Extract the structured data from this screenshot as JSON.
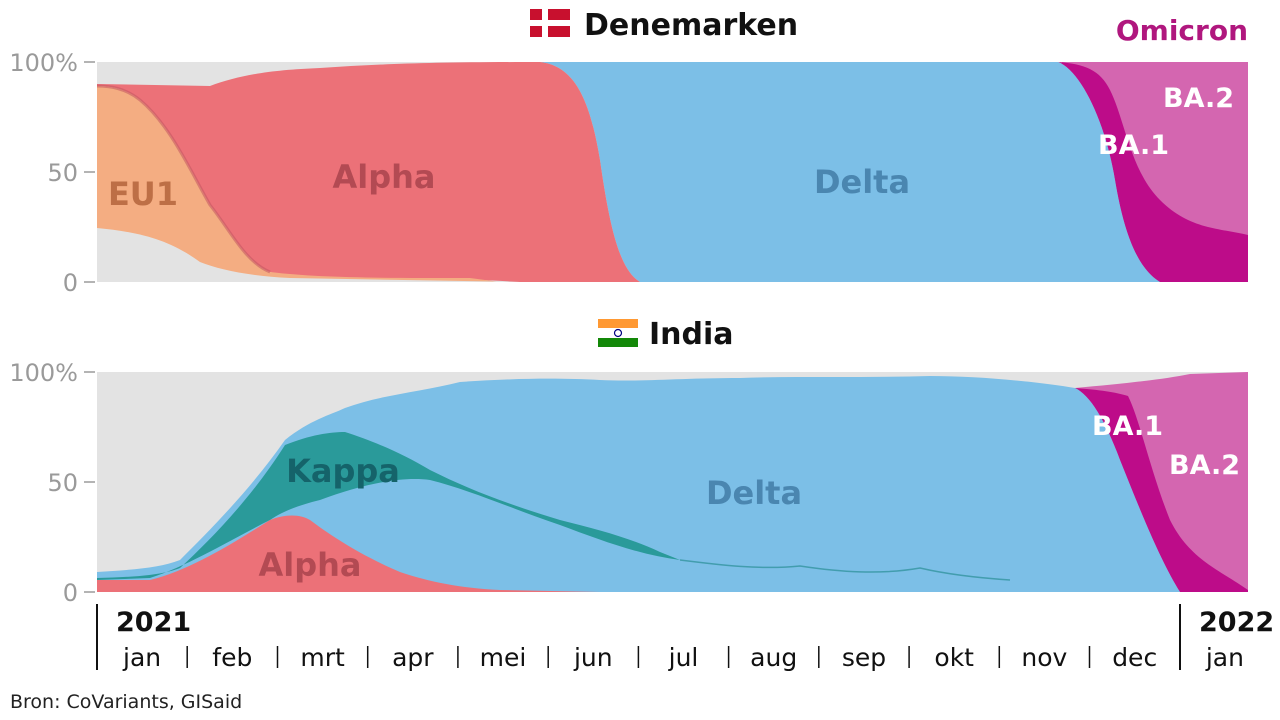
{
  "omicron_label": "Omicron",
  "source": "Bron: CoVariants, GISaid",
  "year_start": "2021",
  "year_end": "2022",
  "months": [
    "jan",
    "feb",
    "mrt",
    "apr",
    "mei",
    "jun",
    "jul",
    "aug",
    "sep",
    "okt",
    "nov",
    "dec",
    "jan"
  ],
  "colors": {
    "background": "#e3e3e3",
    "eu1": "#f4ad82",
    "alpha": "#ec7178",
    "delta": "#7cbfe7",
    "kappa": "#2a9a9a",
    "ba1": "#bd0c89",
    "ba2": "#d466b0",
    "omicron_title": "#b0177e"
  },
  "chart_data": [
    {
      "type": "area",
      "title": "Denemarken",
      "flag": "flag-denmark",
      "y_ticks": [
        "0",
        "50",
        "100%"
      ],
      "ylim": [
        0,
        100
      ],
      "x_range": [
        "2021-01-01",
        "2022-01-31"
      ],
      "series": [
        {
          "name": "EU1",
          "label_color": "#bd6f46",
          "x": [
            "2021-01-01",
            "2021-01-20",
            "2021-02-05",
            "2021-02-15",
            "2021-03-01",
            "2021-03-20",
            "2021-04-15",
            "2021-05-01",
            "2021-06-01"
          ],
          "values": [
            62,
            60,
            50,
            30,
            10,
            3,
            2,
            1,
            0
          ]
        },
        {
          "name": "Alpha",
          "label_color": "#b34a53",
          "x": [
            "2021-01-01",
            "2021-02-01",
            "2021-02-15",
            "2021-03-01",
            "2021-04-01",
            "2021-05-01",
            "2021-06-01",
            "2021-06-10",
            "2021-06-20",
            "2021-07-01",
            "2021-07-15"
          ],
          "values": [
            4,
            15,
            50,
            84,
            96,
            98,
            97,
            70,
            20,
            5,
            0
          ]
        },
        {
          "name": "Delta",
          "label_color": "#4a86b0",
          "x": [
            "2021-06-01",
            "2021-06-10",
            "2021-06-20",
            "2021-07-01",
            "2021-08-01",
            "2021-11-01",
            "2021-11-25",
            "2021-12-10",
            "2021-12-20",
            "2022-01-01"
          ],
          "values": [
            2,
            30,
            80,
            98,
            100,
            100,
            98,
            70,
            20,
            2
          ]
        },
        {
          "name": "BA.1",
          "label_color": "#ffffff",
          "x": [
            "2021-11-25",
            "2021-12-05",
            "2021-12-15",
            "2021-12-25",
            "2022-01-10",
            "2022-01-31"
          ],
          "values": [
            1,
            10,
            45,
            70,
            35,
            5
          ]
        },
        {
          "name": "BA.2",
          "label_color": "#ffffff",
          "x": [
            "2021-12-01",
            "2021-12-15",
            "2022-01-01",
            "2022-01-15",
            "2022-01-31"
          ],
          "values": [
            0,
            2,
            10,
            45,
            80
          ]
        }
      ]
    },
    {
      "type": "area",
      "title": "India",
      "flag": "flag-india",
      "y_ticks": [
        "0",
        "50",
        "100%"
      ],
      "ylim": [
        0,
        100
      ],
      "x_range": [
        "2021-01-01",
        "2022-01-31"
      ],
      "series": [
        {
          "name": "Alpha",
          "label_color": "#b34a53",
          "x": [
            "2021-01-01",
            "2021-02-01",
            "2021-02-25",
            "2021-03-10",
            "2021-04-01",
            "2021-05-01",
            "2021-06-01"
          ],
          "values": [
            5,
            8,
            20,
            30,
            15,
            2,
            0
          ]
        },
        {
          "name": "Kappa",
          "label_color": "#15636a",
          "x": [
            "2021-01-01",
            "2021-02-01",
            "2021-03-01",
            "2021-03-20",
            "2021-04-15",
            "2021-05-15",
            "2021-06-15",
            "2021-07-15",
            "2021-09-01"
          ],
          "values": [
            0,
            5,
            30,
            30,
            20,
            8,
            3,
            1,
            0
          ]
        },
        {
          "name": "Delta",
          "label_color": "#4a86b0",
          "x": [
            "2021-01-01",
            "2021-02-01",
            "2021-03-01",
            "2021-04-01",
            "2021-05-01",
            "2021-06-01",
            "2021-08-01",
            "2021-11-01",
            "2021-11-20",
            "2021-12-10",
            "2021-12-25",
            "2022-01-05"
          ],
          "values": [
            2,
            8,
            12,
            40,
            80,
            90,
            95,
            94,
            90,
            60,
            15,
            2
          ]
        },
        {
          "name": "BA.1",
          "label_color": "#ffffff",
          "x": [
            "2021-11-20",
            "2021-12-01",
            "2021-12-15",
            "2021-12-25",
            "2022-01-10",
            "2022-01-31"
          ],
          "values": [
            1,
            8,
            25,
            45,
            15,
            2
          ]
        },
        {
          "name": "BA.2",
          "label_color": "#ffffff",
          "x": [
            "2021-12-01",
            "2021-12-15",
            "2022-01-01",
            "2022-01-15",
            "2022-01-31"
          ],
          "values": [
            0,
            5,
            40,
            80,
            98
          ]
        }
      ]
    }
  ]
}
